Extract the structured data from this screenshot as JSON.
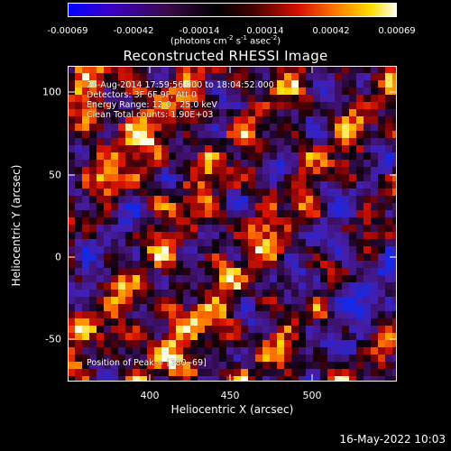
{
  "colorbar": {
    "ticks": [
      "-0.00069",
      "-0.00042",
      "-0.00014",
      "0.00014",
      "0.00042",
      "0.00069"
    ],
    "units_text": "(photons cm",
    "units_exp1": "-2",
    "units_mid": " s",
    "units_exp2": "-1",
    "units_mid2": " asec",
    "units_exp3": "-2",
    "units_end": ")"
  },
  "title": "Reconstructed RHESSI Image",
  "info": {
    "time": "24-Aug-2014 17:59:56.000 to 18:04:52.000",
    "detectors": "Detectors: 3F 6F 9F, Att 0",
    "energy": "Energy Range: 12.0 - 25.0 keV",
    "method": "Clean     Total counts: 1.90E+03",
    "peak": "Position of Peak = [380,-69]"
  },
  "axes": {
    "xlabel": "Heliocentric X (arcsec)",
    "ylabel": "Heliocentric Y (arcsec)",
    "xticks": [
      "400",
      "450",
      "500"
    ],
    "yticks": [
      "100",
      "50",
      "0",
      "-50"
    ]
  },
  "footer": "16-May-2022 10:03",
  "colors": {
    "negative": "#0000ff",
    "zero": "#000000",
    "positive_mid": "#ff0000",
    "positive_high": "#ffff00",
    "positive_max": "#ffffff"
  }
}
